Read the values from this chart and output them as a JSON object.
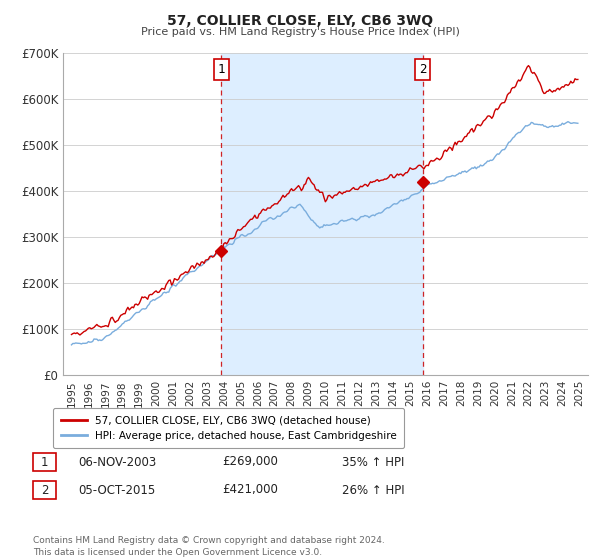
{
  "title": "57, COLLIER CLOSE, ELY, CB6 3WQ",
  "subtitle": "Price paid vs. HM Land Registry's House Price Index (HPI)",
  "legend_line1": "57, COLLIER CLOSE, ELY, CB6 3WQ (detached house)",
  "legend_line2": "HPI: Average price, detached house, East Cambridgeshire",
  "annotation1_box": "1",
  "annotation1_date": "06-NOV-2003",
  "annotation1_price": "£269,000",
  "annotation1_hpi": "35% ↑ HPI",
  "annotation2_box": "2",
  "annotation2_date": "05-OCT-2015",
  "annotation2_price": "£421,000",
  "annotation2_hpi": "26% ↑ HPI",
  "footer": "Contains HM Land Registry data © Crown copyright and database right 2024.\nThis data is licensed under the Open Government Licence v3.0.",
  "sale_color": "#cc0000",
  "hpi_color": "#7aaddd",
  "vline_color": "#cc0000",
  "shade_color": "#ddeeff",
  "background_color": "#ffffff",
  "ylim": [
    0,
    700000
  ],
  "yticks": [
    0,
    100000,
    200000,
    300000,
    400000,
    500000,
    600000,
    700000
  ],
  "sale1_x": 2003.85,
  "sale1_y": 269000,
  "sale2_x": 2015.75,
  "sale2_y": 421000,
  "xmin": 1994.5,
  "xmax": 2025.5
}
